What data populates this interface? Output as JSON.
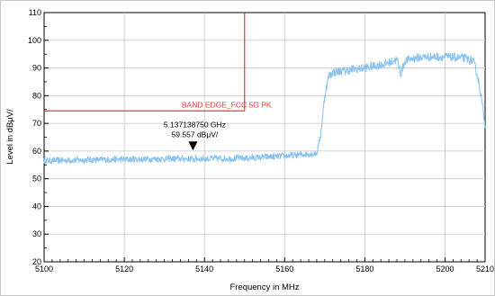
{
  "chart_data": {
    "type": "line",
    "xlabel": "Frequency in MHz",
    "ylabel": "Level in dBµV/",
    "xlim": [
      5100,
      5210
    ],
    "ylim": [
      20,
      110
    ],
    "x_ticks": [
      5100,
      5120,
      5140,
      5160,
      5180,
      5200,
      5210
    ],
    "x_tick_labels": [
      "5100",
      "5120",
      "5140",
      "5160",
      "5180",
      "5200",
      "5210"
    ],
    "y_ticks": [
      20,
      30,
      40,
      50,
      60,
      70,
      80,
      90,
      100,
      110
    ],
    "y_tick_labels": [
      "20",
      "30",
      "40",
      "50",
      "60",
      "70",
      "80",
      "90",
      "100",
      "110"
    ],
    "grid": true,
    "colors": {
      "trace": "#8cc4ee",
      "limit": "#e03c3c",
      "grid": "#c6c6c6",
      "marker": "#000000"
    },
    "series": [
      {
        "x": [
          5100,
          5110,
          5120,
          5130,
          5140,
          5150,
          5155,
          5160,
          5165,
          5168,
          5169,
          5170,
          5171,
          5172,
          5175,
          5180,
          5185,
          5188,
          5189,
          5190,
          5192,
          5195,
          5200,
          5205,
          5207,
          5208,
          5209,
          5210
        ],
        "values": [
          56.5,
          56.8,
          57.0,
          57.2,
          57.2,
          57.4,
          57.8,
          58.2,
          58.8,
          59.2,
          66,
          80,
          87,
          88.5,
          89,
          90,
          91.5,
          93,
          88,
          92.5,
          93.5,
          94,
          94,
          93.5,
          92.5,
          88,
          80,
          69
        ]
      }
    ],
    "limit_line": {
      "label": "BAND EDGE_FCC 5G PK",
      "level": 74.5,
      "x_start": 5100,
      "x_end": 5150,
      "vertical_x": 5150
    },
    "marker": {
      "frequency_text": "5.137138750 GHz",
      "level_text": "59.557 dBµV/",
      "x": 5137.13875,
      "y": 59.557
    }
  }
}
